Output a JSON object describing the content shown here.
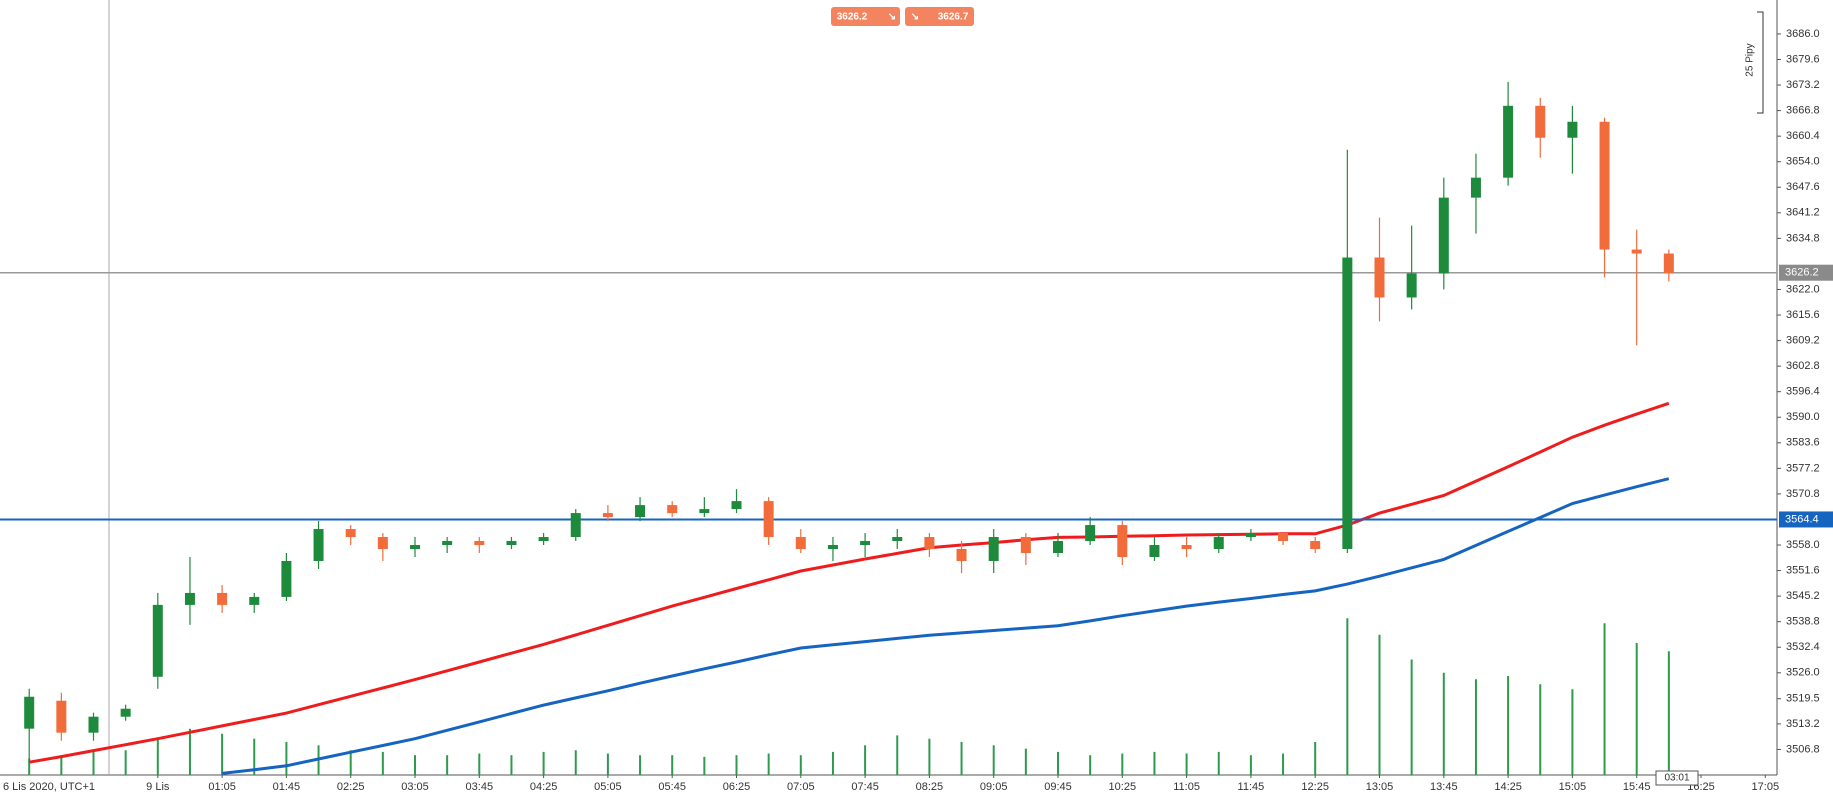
{
  "chart_data": {
    "type": "candlestick",
    "categories": [
      "6 Lis 2020, UTC+1",
      null,
      null,
      null,
      "9 Lis",
      null,
      "01:05",
      null,
      "01:45",
      null,
      "02:25",
      null,
      "03:05",
      null,
      "03:45",
      null,
      "04:25",
      null,
      "05:05",
      null,
      "05:45",
      null,
      "06:25",
      null,
      "07:05",
      null,
      "07:45",
      null,
      "08:25",
      null,
      "09:05",
      null,
      "09:45",
      null,
      "10:25",
      null,
      "11:05",
      null,
      "11:45",
      null,
      "12:25",
      null,
      "13:05",
      null,
      "13:45",
      null,
      "14:25",
      null,
      "15:05",
      null,
      "15:45",
      null,
      "16:25",
      null,
      "17:05"
    ],
    "open": [
      3512,
      3519,
      3511,
      3515,
      3525,
      3543,
      3546,
      3543,
      3545,
      3554,
      3562,
      3560,
      3557,
      3558,
      3559,
      3558,
      3559,
      3560,
      3566,
      3565,
      3568,
      3566,
      3567,
      3569,
      3560,
      3557,
      3558,
      3559,
      3560,
      3557,
      3554,
      3560,
      3556,
      3559,
      3563,
      3555,
      3558,
      3557,
      3560,
      3561,
      3559,
      3557,
      3630,
      3620,
      3626,
      3645,
      3650,
      3668,
      3660,
      3664,
      3632,
      3631,
      null,
      null,
      null
    ],
    "high": [
      3522,
      3521,
      3516,
      3518,
      3546,
      3555,
      3548,
      3546,
      3556,
      3564,
      3563,
      3561,
      3560,
      3560,
      3560,
      3560,
      3561,
      3567,
      3568,
      3570,
      3569,
      3570,
      3572,
      3570,
      3562,
      3560,
      3561,
      3562,
      3561,
      3559,
      3562,
      3561,
      3561,
      3565,
      3564,
      3560,
      3560,
      3561,
      3562,
      3561,
      3560,
      3657,
      3640,
      3638,
      3650,
      3656,
      3674,
      3670,
      3668,
      3665,
      3637,
      3632,
      null,
      null,
      null
    ],
    "low": [
      3504,
      3509,
      3509,
      3514,
      3522,
      3538,
      3541,
      3541,
      3544,
      3552,
      3558,
      3554,
      3555,
      3556,
      3556,
      3557,
      3558,
      3559,
      3564,
      3564,
      3565,
      3565,
      3566,
      3558,
      3556,
      3554,
      3555,
      3557,
      3555,
      3551,
      3551,
      3553,
      3555,
      3558,
      3553,
      3554,
      3555,
      3556,
      3559,
      3558,
      3556,
      3556,
      3614,
      3617,
      3622,
      3636,
      3648,
      3655,
      3651,
      3625,
      3608,
      3624,
      null,
      null,
      null
    ],
    "close": [
      3520,
      3511,
      3515,
      3517,
      3543,
      3546,
      3543,
      3545,
      3554,
      3562,
      3560,
      3557,
      3558,
      3559,
      3558,
      3559,
      3560,
      3566,
      3565,
      3568,
      3566,
      3567,
      3569,
      3560,
      3557,
      3558,
      3559,
      3560,
      3557,
      3554,
      3560,
      3556,
      3559,
      3563,
      3555,
      3558,
      3557,
      3560,
      3561,
      3559,
      3557,
      3630,
      3620,
      3626,
      3645,
      3650,
      3668,
      3660,
      3664,
      3632,
      3631,
      3626,
      null,
      null,
      null
    ],
    "up_color": "#1e8a3c",
    "down_color": "#f26b3a",
    "lines": [
      {
        "color": "#ee1c1c",
        "values": [
          3503.6,
          3505.0,
          3506.5,
          3508.0,
          3509.5,
          3511.1,
          3512.7,
          3514.3,
          3515.9,
          3518.0,
          3520.1,
          3522.2,
          3524.3,
          3526.5,
          3528.7,
          3530.9,
          3533.1,
          3535.5,
          3537.9,
          3540.3,
          3542.7,
          3544.9,
          3547.1,
          3549.3,
          3551.5,
          3553.0,
          3554.5,
          3555.9,
          3557.3,
          3558.0,
          3558.6,
          3559.3,
          3559.9,
          3560.0,
          3560.2,
          3560.3,
          3560.5,
          3560.6,
          3560.7,
          3560.8,
          3560.8,
          3563.0,
          3566.0,
          3568.2,
          3570.4,
          3574.0,
          3577.6,
          3581.3,
          3585.0,
          3588.0,
          3590.8,
          3593.5,
          null,
          null,
          null
        ]
      },
      {
        "color": "#1565c0",
        "values": [
          null,
          null,
          null,
          null,
          null,
          null,
          3500.8,
          3501.7,
          3502.7,
          3504.4,
          3506.1,
          3507.8,
          3509.5,
          3511.6,
          3513.7,
          3515.8,
          3517.9,
          3519.7,
          3521.5,
          3523.4,
          3525.2,
          3527.0,
          3528.7,
          3530.5,
          3532.2,
          3533.0,
          3533.8,
          3534.6,
          3535.4,
          3536.0,
          3536.6,
          3537.2,
          3537.8,
          3539.0,
          3540.3,
          3541.5,
          3542.7,
          3543.7,
          3544.6,
          3545.6,
          3546.5,
          3548.2,
          3550.2,
          3552.3,
          3554.4,
          3557.9,
          3561.4,
          3564.9,
          3568.4,
          3570.5,
          3572.6,
          3574.6,
          null,
          null,
          null
        ]
      }
    ],
    "volume": {
      "color": "#2e9a4e",
      "ylim": [
        0,
        100
      ],
      "values": [
        10,
        12,
        14,
        15,
        22,
        28,
        25,
        22,
        20,
        18,
        15,
        14,
        12,
        12,
        13,
        12,
        14,
        15,
        13,
        12,
        12,
        11,
        12,
        13,
        12,
        14,
        18,
        24,
        22,
        20,
        18,
        16,
        14,
        12,
        13,
        14,
        13,
        14,
        12,
        13,
        20,
        95,
        85,
        70,
        62,
        58,
        60,
        55,
        52,
        92,
        80,
        75,
        null,
        null,
        null
      ]
    },
    "ylim": [
      3500.4,
      3694.5
    ],
    "yticks": [
      3506.8,
      3513.2,
      3519.5,
      {
        "value": 3526.0,
        "label": "3526.0"
      },
      3532.4,
      3538.8,
      3545.2,
      3551.6,
      {
        "value": 3558.0,
        "label": "3558.0"
      },
      3570.8,
      3577.2,
      3583.6,
      {
        "value": 3590.0,
        "label": "3590.0"
      },
      3596.4,
      3602.8,
      3609.2,
      3615.6,
      {
        "value": 3622.0,
        "label": "3622.0"
      },
      3634.8,
      3641.2,
      3647.6,
      {
        "value": 3654.0,
        "label": "3654.0"
      },
      3660.4,
      3666.8,
      3673.2,
      3679.6,
      {
        "value": 3686.0,
        "label": "3686.0"
      }
    ],
    "bid_line": 3626.2,
    "bid_color": "#999999",
    "level_line": 3564.4,
    "level_color": "#1565c0",
    "sell_price": 3626.2,
    "buy_price": 3626.7,
    "ruler_label": "25 Pipy",
    "countdown": "03:01"
  }
}
